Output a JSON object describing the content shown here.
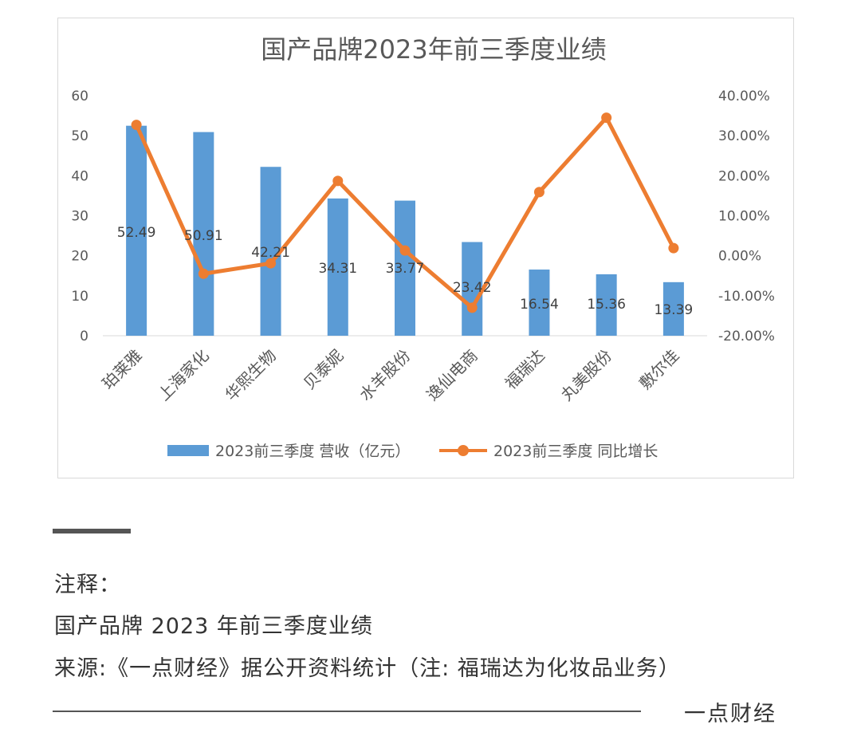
{
  "chart_data": {
    "type": "bar+line",
    "title": "国产品牌2023年前三季度业绩",
    "categories": [
      "珀莱雅",
      "上海家化",
      "华熙生物",
      "贝泰妮",
      "水羊股份",
      "逸仙电商",
      "福瑞达",
      "丸美股份",
      "敷尔佳"
    ],
    "series": [
      {
        "name": "2023前三季度 营收（亿元）",
        "type": "bar",
        "axis": "left",
        "color": "#5b9bd5",
        "values": [
          52.49,
          50.91,
          42.21,
          34.31,
          33.77,
          23.42,
          16.54,
          15.36,
          13.39
        ],
        "labels": [
          "52.49",
          "50.91",
          "42.21",
          "34.31",
          "33.77",
          "23.42",
          "16.54",
          "15.36",
          "13.39"
        ]
      },
      {
        "name": "2023前三季度 同比增长",
        "type": "line",
        "axis": "right",
        "color": "#ed7d31",
        "values": [
          32.7,
          -4.5,
          -1.9,
          18.7,
          1.3,
          -13.0,
          15.9,
          34.5,
          1.9
        ]
      }
    ],
    "y_left": {
      "min": 0,
      "max": 60,
      "ticks": [
        "0",
        "10",
        "20",
        "30",
        "40",
        "50",
        "60"
      ]
    },
    "y_right": {
      "min": -20,
      "max": 40,
      "unit": "%",
      "ticks": [
        "-20.00%",
        "-10.00%",
        "0.00%",
        "10.00%",
        "20.00%",
        "30.00%",
        "40.00%"
      ]
    },
    "grid": false,
    "legend": "bottom"
  },
  "notes": {
    "heading": "注释：",
    "line1": "国产品牌 2023 年前三季度业绩",
    "line2": "来源:《一点财经》据公开资料统计（注: 福瑞达为化妆品业务）"
  },
  "footer": {
    "brand": "一点财经"
  }
}
